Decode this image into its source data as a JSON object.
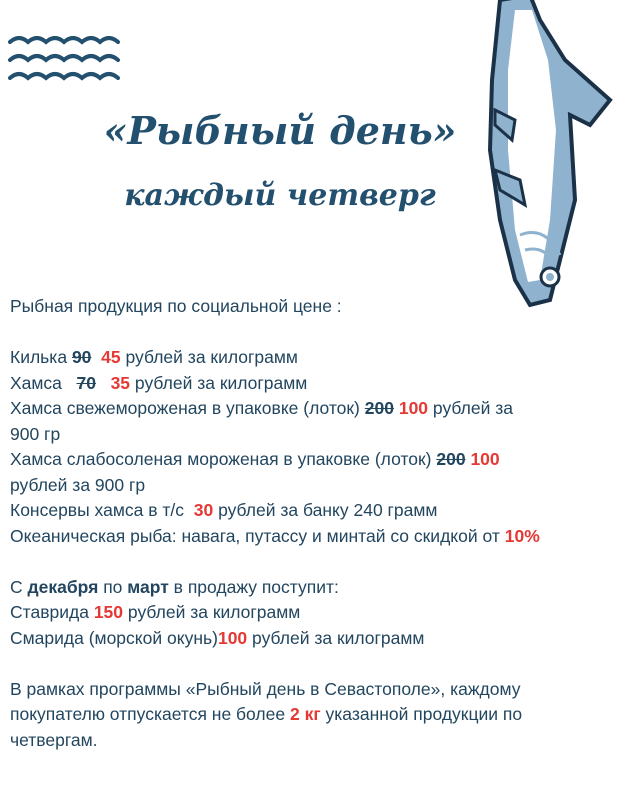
{
  "header": {
    "title": "«Рыбный день»",
    "subtitle": "каждый четверг"
  },
  "intro": "Рыбная продукция по социальной цене :",
  "items": [
    {
      "name": "Килька",
      "old": "90",
      "new": "45",
      "unit": "рублей за килограмм"
    },
    {
      "name": "Хамса",
      "old": "70",
      "new": "35",
      "unit": "рублей за килограмм"
    },
    {
      "name": "Хамса свежемороженая в упаковке (лоток)",
      "old": "200",
      "new": "100",
      "unit": "рублей за",
      "unit2": "900 гр"
    },
    {
      "name": "Хамса слабосоленая мороженая в упаковке (лоток)",
      "old": "200",
      "new": "100",
      "unit2": "рублей за 900 гр"
    },
    {
      "name": "Консервы хамса в т/с",
      "new": "30",
      "unit": "рублей за банку 240 грамм"
    },
    {
      "name": "Океаническая рыба: навага, путассу и минтай со скидкой от",
      "new": "10%"
    }
  ],
  "season": {
    "prefix": "С",
    "from": "декабря",
    "mid": "по",
    "to": "март",
    "suffix": "в продажу поступит:",
    "items": [
      {
        "name": "Ставрида",
        "price": "150",
        "unit": "рублей за килограмм"
      },
      {
        "name": "Смарида (морской окунь)",
        "price": "100",
        "unit": "рублей за килограмм"
      }
    ]
  },
  "note": {
    "line1": "В рамках программы «Рыбный день в Севастополе», каждому",
    "line2a": "покупателю отпускается не более",
    "limit": "2 кг",
    "line2b": "указанной продукции по",
    "line3": "четвергам."
  },
  "colors": {
    "text": "#23465f",
    "accent": "#e53935",
    "fish": "#7fa6c6"
  }
}
